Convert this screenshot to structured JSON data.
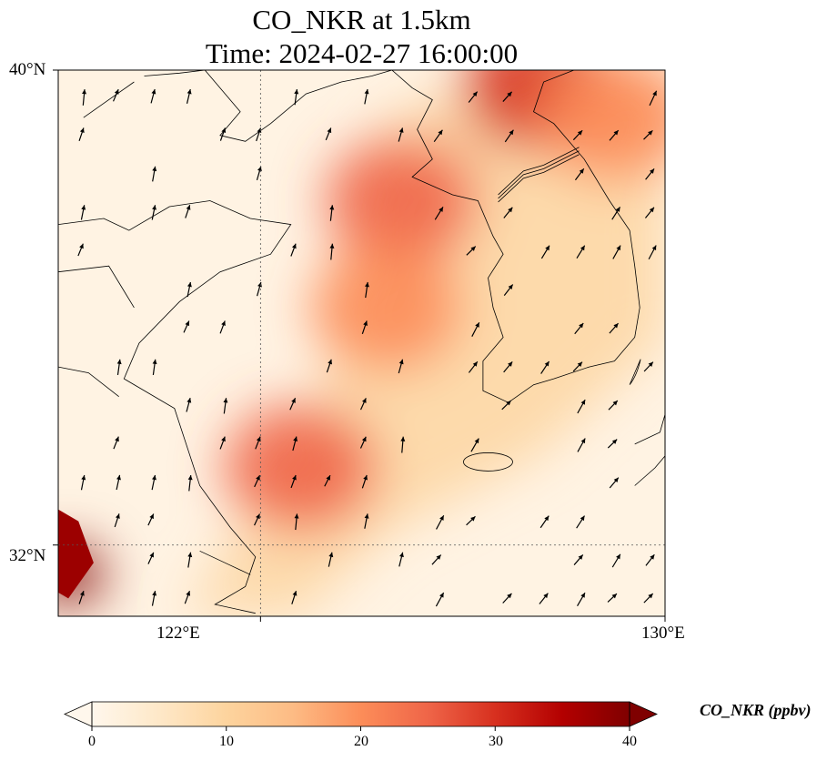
{
  "title_line1": "CO_NKR at 1.5km",
  "title_line2": "Time: 2024-02-27 16:00:00",
  "map": {
    "lon_range": [
      118,
      130
    ],
    "lat_range": [
      30.8,
      40
    ],
    "gridlines_lon": [
      122
    ],
    "gridlines_lat": [
      32
    ],
    "x_ticks": [
      {
        "lon": 122,
        "label": "122°E"
      },
      {
        "lon": 130,
        "label": "130°E"
      }
    ],
    "y_ticks": [
      {
        "lat": 40,
        "label": "40°N"
      },
      {
        "lat": 32,
        "label": "32°N"
      }
    ],
    "field_hotspots": [
      {
        "lon": 127.5,
        "lat": 39.7,
        "value": 28
      },
      {
        "lon": 124.8,
        "lat": 37.8,
        "value": 24
      },
      {
        "lon": 124.5,
        "lat": 36.0,
        "value": 22
      },
      {
        "lon": 122.8,
        "lat": 33.3,
        "value": 24
      },
      {
        "lon": 118.2,
        "lat": 31.5,
        "value": 40
      },
      {
        "lon": 129.0,
        "lat": 39.2,
        "value": 22
      }
    ],
    "wind_arrows": "field of black wind vectors, predominantly blowing toward the northeast"
  },
  "colorbar": {
    "min": 0,
    "max": 40,
    "ticks": [
      "0",
      "10",
      "20",
      "30",
      "40"
    ],
    "label": "CO_NKR (ppbv)",
    "colormap": "OrRd",
    "colors": [
      "#fff7ec",
      "#fee8c8",
      "#fdd49e",
      "#fdbb84",
      "#fc8d59",
      "#ef6548",
      "#d7301f",
      "#b30000",
      "#7f0000"
    ]
  }
}
